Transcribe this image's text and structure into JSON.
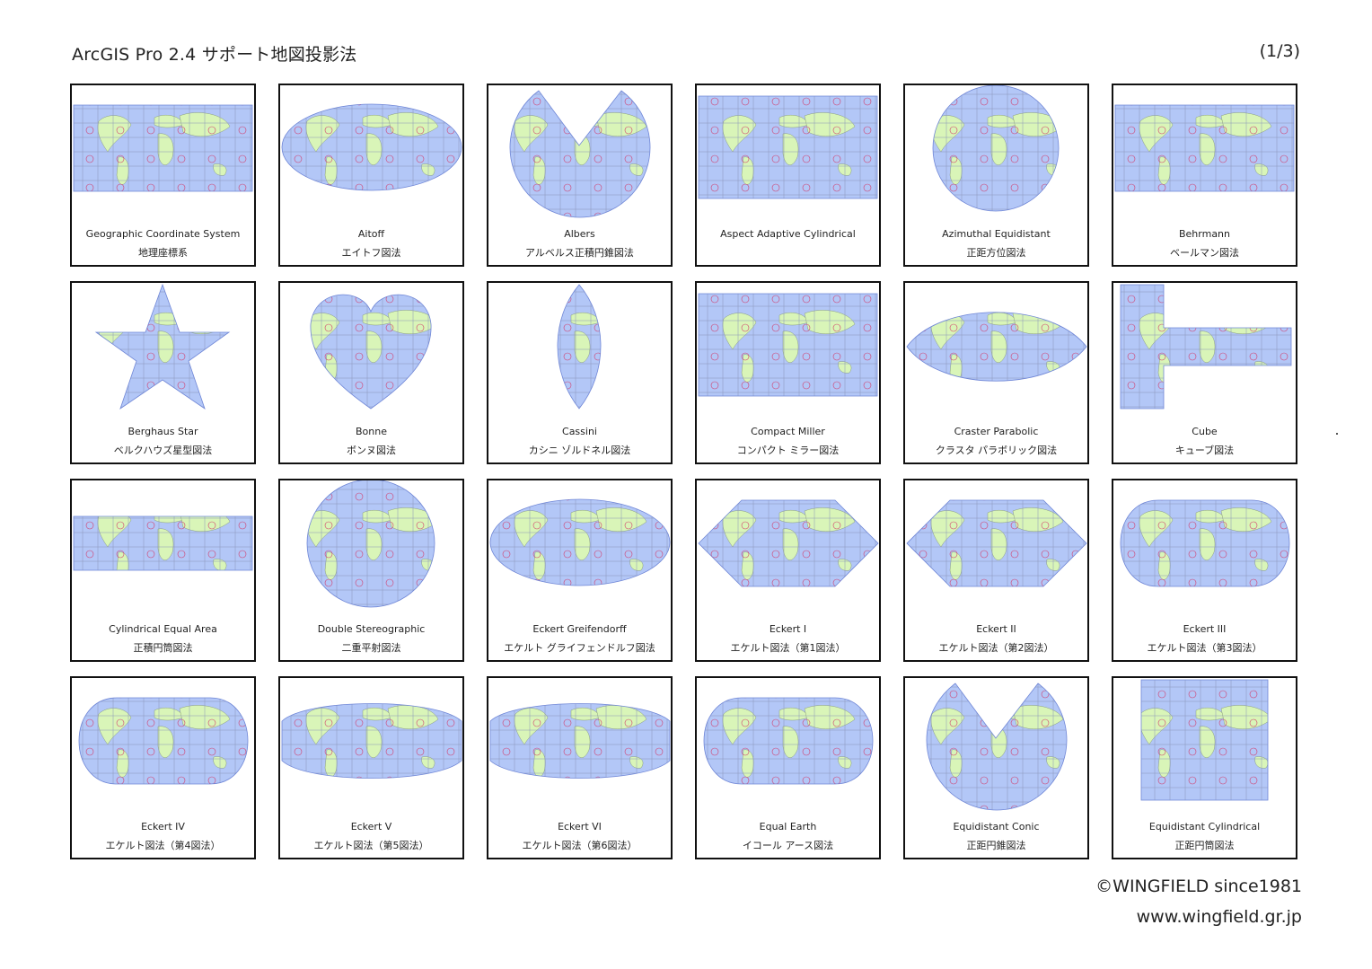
{
  "header": {
    "title": "ArcGIS Pro 2.4 サポート地図投影法",
    "page_indicator": "(1/3)"
  },
  "colors": {
    "ocean": "#b3c7f7",
    "land": "#d9f5b8",
    "graticule": "#8a95b8",
    "tissot": "#d23c6a",
    "frame": "#111111"
  },
  "projections": [
    {
      "name": "Geographic Coordinate System",
      "jname": "地理座標系",
      "shape": "rect-wide",
      "icon": "world-map-icon"
    },
    {
      "name": "Aitoff",
      "jname": "エイトフ図法",
      "shape": "ellipse",
      "icon": "world-map-icon"
    },
    {
      "name": "Albers",
      "jname": "アルベルス正積円錐図法",
      "shape": "fan",
      "icon": "world-map-icon"
    },
    {
      "name": "Aspect Adaptive Cylindrical",
      "jname": "",
      "shape": "rect-tall",
      "icon": "world-map-icon"
    },
    {
      "name": "Azimuthal Equidistant",
      "jname": "正距方位図法",
      "shape": "circle-ring",
      "icon": "world-map-icon"
    },
    {
      "name": "Behrmann",
      "jname": "ベールマン図法",
      "shape": "rect-wide",
      "icon": "world-map-icon"
    },
    {
      "name": "Berghaus Star",
      "jname": "ベルクハウズ星型図法",
      "shape": "star",
      "icon": "world-map-icon"
    },
    {
      "name": "Bonne",
      "jname": "ボンヌ図法",
      "shape": "heart",
      "icon": "world-map-icon"
    },
    {
      "name": "Cassini",
      "jname": "カシニ ゾルドネル図法",
      "shape": "lens",
      "icon": "world-map-icon"
    },
    {
      "name": "Compact Miller",
      "jname": "コンパクト ミラー図法",
      "shape": "rect-tall",
      "icon": "world-map-icon"
    },
    {
      "name": "Craster Parabolic",
      "jname": "クラスタ パラボリック図法",
      "shape": "lenticular",
      "icon": "world-map-icon"
    },
    {
      "name": "Cube",
      "jname": "キューブ図法",
      "shape": "cube",
      "icon": "world-map-icon"
    },
    {
      "name": "Cylindrical Equal Area",
      "jname": "正積円筒図法",
      "shape": "rect-thin",
      "icon": "world-map-icon"
    },
    {
      "name": "Double Stereographic",
      "jname": "二重平射図法",
      "shape": "circle",
      "icon": "world-map-icon"
    },
    {
      "name": "Eckert Greifendorff",
      "jname": "エケルト グライフェンドルフ図法",
      "shape": "ellipse",
      "icon": "world-map-icon"
    },
    {
      "name": "Eckert I",
      "jname": "エケルト図法（第1図法）",
      "shape": "hexagon",
      "icon": "world-map-icon"
    },
    {
      "name": "Eckert II",
      "jname": "エケルト図法（第2図法）",
      "shape": "hexagon",
      "icon": "world-map-icon"
    },
    {
      "name": "Eckert III",
      "jname": "エケルト図法（第3図法）",
      "shape": "rounded",
      "icon": "world-map-icon"
    },
    {
      "name": "Eckert IV",
      "jname": "エケルト図法（第4図法）",
      "shape": "rounded",
      "icon": "world-map-icon"
    },
    {
      "name": "Eckert V",
      "jname": "エケルト図法（第5図法）",
      "shape": "lenticular-flat",
      "icon": "world-map-icon"
    },
    {
      "name": "Eckert VI",
      "jname": "エケルト図法（第6図法）",
      "shape": "lenticular-flat",
      "icon": "world-map-icon"
    },
    {
      "name": "Equal Earth",
      "jname": "イコール アース図法",
      "shape": "rounded",
      "icon": "world-map-icon"
    },
    {
      "name": "Equidistant Conic",
      "jname": "正距円錐図法",
      "shape": "fan",
      "icon": "world-map-icon"
    },
    {
      "name": "Equidistant Cylindrical",
      "jname": "正距円筒図法",
      "shape": "rect-square",
      "icon": "world-map-icon"
    }
  ],
  "footer": {
    "copyright": "©WINGFIELD since1981",
    "url": "www.wingfield.gr.jp"
  }
}
